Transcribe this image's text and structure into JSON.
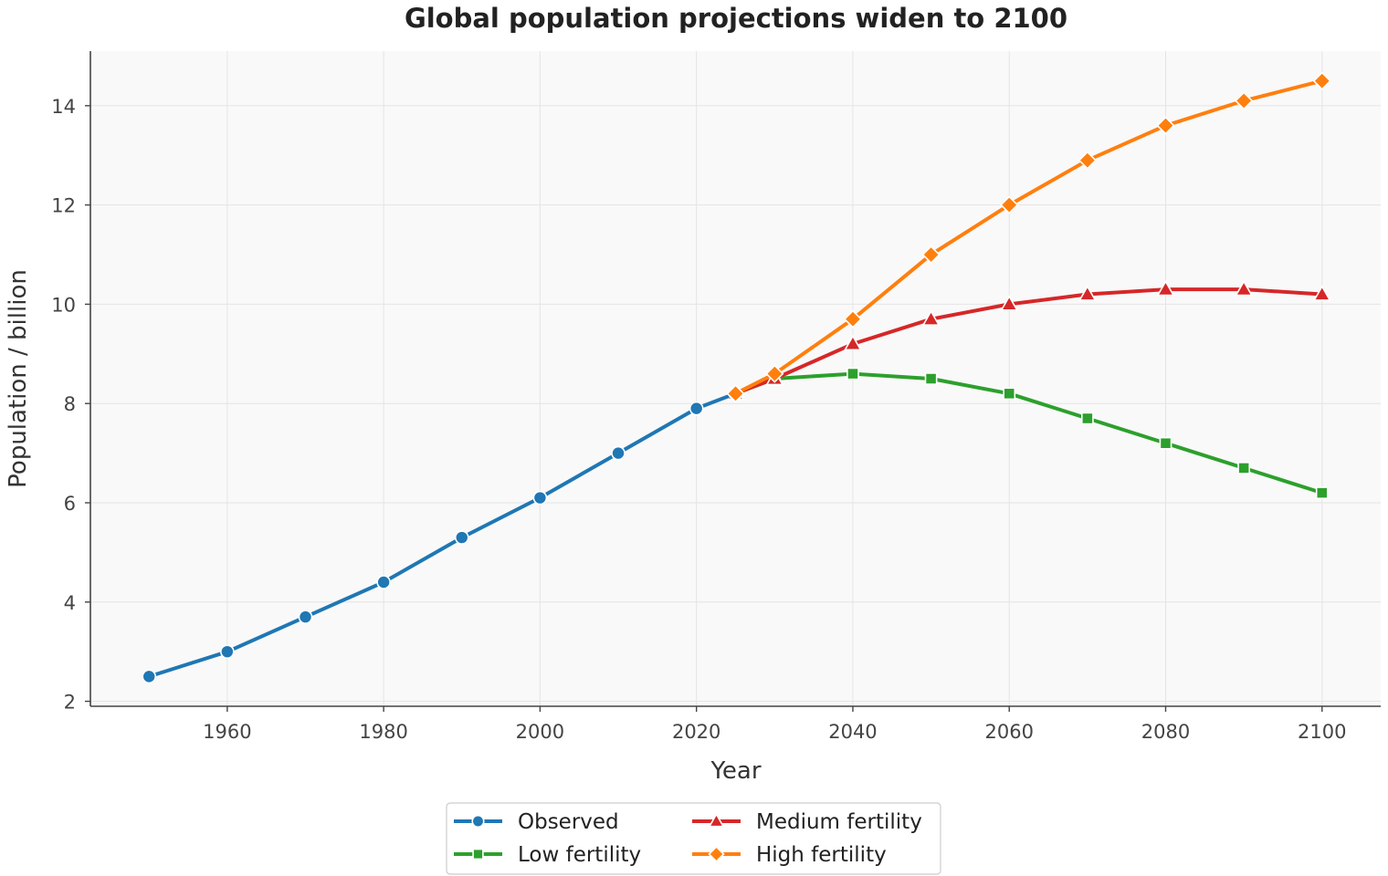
{
  "chart_data": {
    "type": "line",
    "title": "Global population projections widen to 2100",
    "xlabel": "Year",
    "ylabel": "Population / billion",
    "xlim": [
      1942.5,
      2107.5
    ],
    "ylim": [
      1.9,
      15.1
    ],
    "xticks": [
      1960,
      1980,
      2000,
      2020,
      2040,
      2060,
      2080,
      2100
    ],
    "yticks": [
      2,
      4,
      6,
      8,
      10,
      12,
      14
    ],
    "grid": true,
    "legend_position": "bottom-center",
    "series": [
      {
        "name": "Observed",
        "color": "#1f77b4",
        "marker": "circle",
        "x": [
          1950,
          1960,
          1970,
          1980,
          1990,
          2000,
          2010,
          2020,
          2025
        ],
        "y": [
          2.5,
          3.0,
          3.7,
          4.4,
          5.3,
          6.1,
          7.0,
          7.9,
          8.2
        ]
      },
      {
        "name": "Low fertility",
        "color": "#2ca02c",
        "marker": "square",
        "x": [
          2025,
          2030,
          2040,
          2050,
          2060,
          2070,
          2080,
          2090,
          2100
        ],
        "y": [
          8.2,
          8.5,
          8.6,
          8.5,
          8.2,
          7.7,
          7.2,
          6.7,
          6.2
        ]
      },
      {
        "name": "Medium fertility",
        "color": "#d62728",
        "marker": "triangle",
        "x": [
          2025,
          2030,
          2040,
          2050,
          2060,
          2070,
          2080,
          2090,
          2100
        ],
        "y": [
          8.2,
          8.5,
          9.2,
          9.7,
          10.0,
          10.2,
          10.3,
          10.3,
          10.2
        ]
      },
      {
        "name": "High fertility",
        "color": "#ff7f0e",
        "marker": "diamond",
        "x": [
          2025,
          2030,
          2040,
          2050,
          2060,
          2070,
          2080,
          2090,
          2100
        ],
        "y": [
          8.2,
          8.6,
          9.7,
          11.0,
          12.0,
          12.9,
          13.6,
          14.1,
          14.5
        ]
      }
    ]
  }
}
